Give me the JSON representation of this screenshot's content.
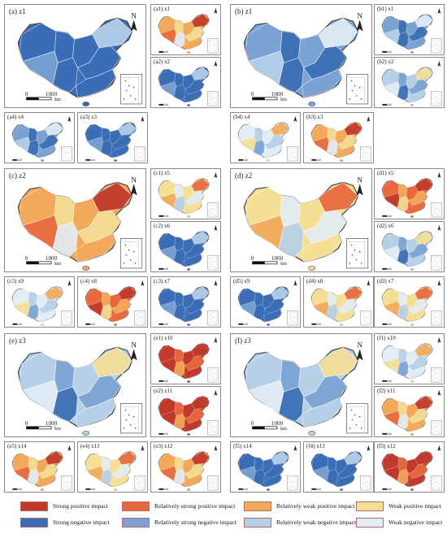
{
  "colors": {
    "strong_pos": "#c0392b",
    "rel_strong_pos": "#e9693f",
    "rel_weak_pos": "#f3a95a",
    "weak_pos": "#f5df95",
    "strong_neg": "#3a6db5",
    "rel_strong_neg": "#7aa3d3",
    "rel_weak_neg": "#b6d0e8",
    "weak_neg": "#e2edf6"
  },
  "scale": {
    "zero": "0",
    "distance": "1000",
    "unit": "km"
  },
  "north": "N",
  "panels": {
    "a_main": {
      "label": "(a) z1",
      "fill": "strong_neg"
    },
    "a1": {
      "label": "(a1) x1",
      "fill": "rel_weak_pos"
    },
    "a2": {
      "label": "(a2) x2",
      "fill": "strong_neg"
    },
    "a3": {
      "label": "(a3) x3",
      "fill": "strong_neg"
    },
    "a4": {
      "label": "(a4) x4",
      "fill": "rel_strong_neg"
    },
    "b_main": {
      "label": "(b) z1",
      "fill": "rel_strong_neg"
    },
    "b1": {
      "label": "(b1) x1",
      "fill": "rel_strong_neg"
    },
    "b2": {
      "label": "(b2) x2",
      "fill": "rel_weak_neg"
    },
    "b3": {
      "label": "(b3) x3",
      "fill": "rel_weak_pos"
    },
    "b4": {
      "label": "(b4) x4",
      "fill": "weak_neg"
    },
    "c_main": {
      "label": "(c) z2",
      "fill": "rel_weak_pos"
    },
    "c1": {
      "label": "(c1) x5",
      "fill": "weak_pos"
    },
    "c2": {
      "label": "(c2) x6",
      "fill": "strong_neg"
    },
    "c3": {
      "label": "(c3) x7",
      "fill": "strong_neg"
    },
    "c4": {
      "label": "(c4) x8",
      "fill": "rel_strong_pos"
    },
    "c5": {
      "label": "(c5) x9",
      "fill": "weak_neg"
    },
    "d_main": {
      "label": "(d) z2",
      "fill": "weak_pos"
    },
    "d1": {
      "label": "(d1) x5",
      "fill": "rel_strong_pos"
    },
    "d2": {
      "label": "(d2) x6",
      "fill": "rel_weak_neg"
    },
    "d3": {
      "label": "(d3) x7",
      "fill": "weak_pos"
    },
    "d4": {
      "label": "(d4) x8",
      "fill": "weak_pos"
    },
    "d5": {
      "label": "(d5) x9",
      "fill": "strong_neg"
    },
    "e_main": {
      "label": "(e) z3",
      "fill": "rel_weak_neg"
    },
    "e1": {
      "label": "(e1) x10",
      "fill": "strong_pos"
    },
    "e2": {
      "label": "(e2) x11",
      "fill": "strong_pos"
    },
    "e3": {
      "label": "(e3) x12",
      "fill": "rel_weak_pos"
    },
    "e4": {
      "label": "(e4) x13",
      "fill": "weak_pos"
    },
    "e5": {
      "label": "(e5) x14",
      "fill": "rel_weak_pos"
    },
    "f_main": {
      "label": "(f) z3",
      "fill": "rel_weak_neg"
    },
    "f1": {
      "label": "(f1) x10",
      "fill": "weak_neg"
    },
    "f2": {
      "label": "(f2) x11",
      "fill": "rel_weak_pos"
    },
    "f3": {
      "label": "(f3) x12",
      "fill": "strong_pos"
    },
    "f4": {
      "label": "(f4) x13",
      "fill": "strong_neg"
    },
    "f5": {
      "label": "(f5) x14",
      "fill": "strong_neg"
    }
  },
  "legend": [
    {
      "label": "Strong positive impact",
      "color": "strong_pos"
    },
    {
      "label": "Relatively strong positive impact",
      "color": "rel_strong_pos"
    },
    {
      "label": "Relatively weak positive impact",
      "color": "rel_weak_pos"
    },
    {
      "label": "Weak positive impact",
      "color": "weak_pos"
    },
    {
      "label": "Strong negative impact",
      "color": "strong_neg"
    },
    {
      "label": "Relatively strong negative impact",
      "color": "rel_strong_neg"
    },
    {
      "label": "Relatively weak negative impact",
      "color": "rel_weak_neg"
    },
    {
      "label": "Weak negative impact",
      "color": "weak_neg"
    }
  ]
}
